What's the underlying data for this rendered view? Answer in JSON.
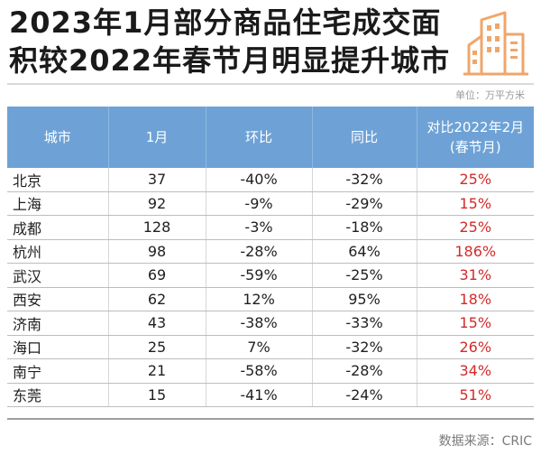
{
  "title": {
    "line1": "2023年1月部分商品住宅成交面",
    "line2": "积较2022年春节月明显提升城市"
  },
  "logo_icon": "city-buildings-icon",
  "unit_label": "单位：万平方米",
  "table": {
    "headers": [
      "城市",
      "1月",
      "环比",
      "同比",
      "对比2022年2月(春节月)"
    ],
    "rows": [
      [
        "北京",
        "37",
        "-40%",
        "-32%",
        "25%"
      ],
      [
        "上海",
        "92",
        "-9%",
        "-29%",
        "15%"
      ],
      [
        "成都",
        "128",
        "-3%",
        "-18%",
        "25%"
      ],
      [
        "杭州",
        "98",
        "-28%",
        "64%",
        "186%"
      ],
      [
        "武汉",
        "69",
        "-59%",
        "-25%",
        "31%"
      ],
      [
        "西安",
        "62",
        "12%",
        "95%",
        "18%"
      ],
      [
        "济南",
        "43",
        "-38%",
        "-33%",
        "15%"
      ],
      [
        "海口",
        "25",
        "7%",
        "-32%",
        "26%"
      ],
      [
        "南宁",
        "21",
        "-58%",
        "-28%",
        "34%"
      ],
      [
        "东莞",
        "15",
        "-41%",
        "-24%",
        "51%"
      ]
    ]
  },
  "source": "数据来源：CRIC",
  "colors": {
    "header_bg": "#6ea2d6",
    "highlight": "#d42a2a",
    "logo_orange": "#f0a66b"
  }
}
